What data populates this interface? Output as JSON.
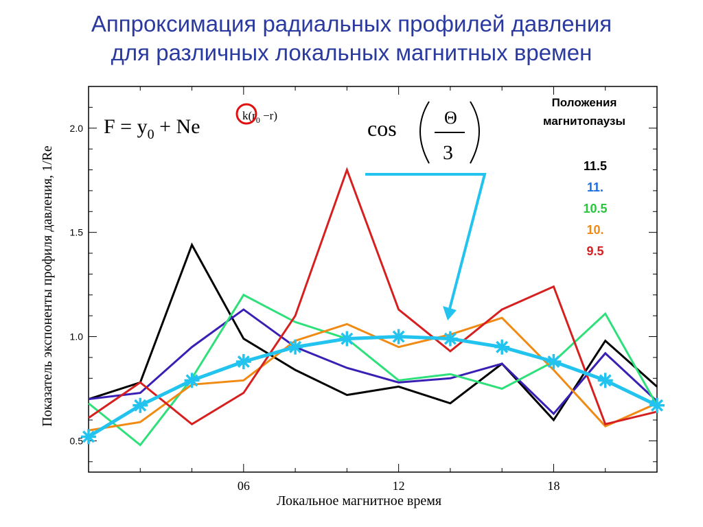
{
  "slide": {
    "title_line1": "Аппроксимация радиальных профилей давления",
    "title_line2": "для различных локальных магнитных времен"
  },
  "formulas": {
    "main_left": "F = y",
    "main_sub0": "0",
    "main_right": " + Ne",
    "exponent_prefix": "k(r",
    "exponent_sub": "0",
    "exponent_suffix": " −r)",
    "cos_label": "cos",
    "cos_numerator": "Θ",
    "cos_denominator": "3"
  },
  "legend": {
    "title_line1": "Положения",
    "title_line2": "магнитопаузы"
  },
  "colors": {
    "title": "#2b3a9e",
    "annotation_arrow": "#22c3ee",
    "highlight_circle": "#e01010"
  },
  "chart_data": {
    "type": "line",
    "xlabel": "Локальное магнитное время",
    "ylabel": "Показатель экспоненты профиля давления, 1/Re",
    "xlim": [
      0,
      22
    ],
    "ylim": [
      0.35,
      2.2
    ],
    "xticks": [
      {
        "value": 6,
        "label": "06"
      },
      {
        "value": 12,
        "label": "12"
      },
      {
        "value": 18,
        "label": "18"
      }
    ],
    "yticks": [
      {
        "value": 0.5,
        "label": "0.5"
      },
      {
        "value": 1.0,
        "label": "1.0"
      },
      {
        "value": 1.5,
        "label": "1.5"
      },
      {
        "value": 2.0,
        "label": "2.0"
      }
    ],
    "x": [
      0,
      2,
      4,
      6,
      8,
      10,
      12,
      14,
      16,
      18,
      20,
      22
    ],
    "series": [
      {
        "name": "11.5",
        "color": "#000000",
        "values": [
          0.7,
          0.78,
          1.44,
          0.99,
          0.84,
          0.72,
          0.76,
          0.68,
          0.87,
          0.6,
          0.98,
          0.76
        ]
      },
      {
        "name": "11.",
        "color": "#3a1fb5",
        "values": [
          0.7,
          0.73,
          0.95,
          1.13,
          0.95,
          0.85,
          0.78,
          0.8,
          0.87,
          0.63,
          0.92,
          0.69
        ]
      },
      {
        "name": "10.5",
        "color": "#2ee07a",
        "values": [
          0.68,
          0.48,
          0.8,
          1.2,
          1.07,
          0.99,
          0.79,
          0.82,
          0.75,
          0.88,
          1.11,
          0.67
        ]
      },
      {
        "name": "10.",
        "color": "#f08a12",
        "values": [
          0.55,
          0.59,
          0.77,
          0.79,
          0.98,
          1.06,
          0.95,
          1.01,
          1.09,
          0.84,
          0.57,
          0.68
        ]
      },
      {
        "name": "9.5",
        "color": "#d62020",
        "values": [
          0.61,
          0.78,
          0.58,
          0.73,
          1.1,
          1.8,
          1.13,
          0.93,
          1.13,
          1.24,
          0.58,
          0.64
        ]
      }
    ],
    "fit": {
      "color": "#22c3ee",
      "values": [
        0.52,
        0.67,
        0.79,
        0.88,
        0.95,
        0.99,
        1.0,
        0.99,
        0.95,
        0.88,
        0.79,
        0.67
      ]
    }
  }
}
